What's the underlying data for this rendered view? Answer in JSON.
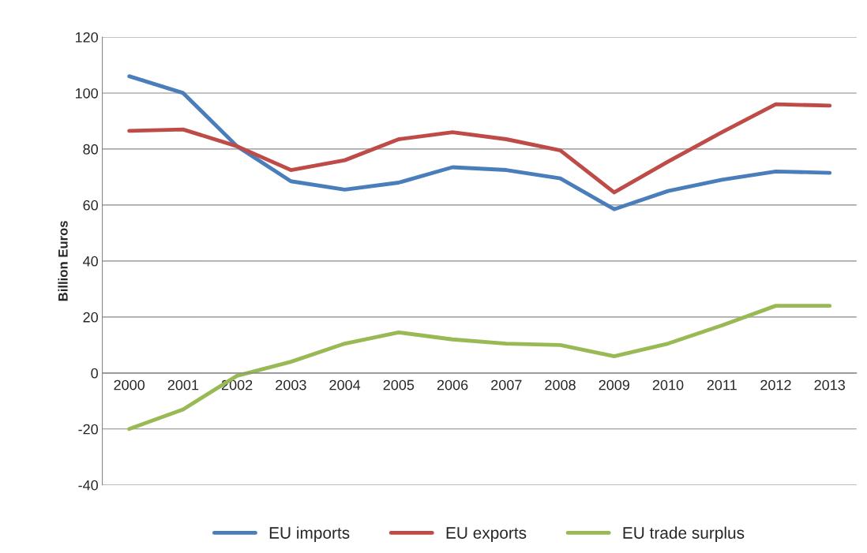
{
  "chart_data": {
    "type": "line",
    "ylabel": "Billion Euros",
    "categories": [
      "2000",
      "2001",
      "2002",
      "2003",
      "2004",
      "2005",
      "2006",
      "2007",
      "2008",
      "2009",
      "2010",
      "2011",
      "2012",
      "2013"
    ],
    "series": [
      {
        "name": "EU imports",
        "color": "#4a7ebb",
        "values": [
          106,
          100,
          81,
          68.5,
          65.5,
          68,
          73.5,
          72.5,
          69.5,
          58.5,
          65,
          69,
          72,
          71.5
        ]
      },
      {
        "name": "EU exports",
        "color": "#be4b48",
        "values": [
          86.5,
          87,
          81,
          72.5,
          76,
          83.5,
          86,
          83.5,
          79.5,
          64.5,
          75.5,
          86,
          96,
          95.5
        ]
      },
      {
        "name": "EU trade surplus",
        "color": "#98b954",
        "values": [
          -20,
          -13,
          -1,
          4,
          10.5,
          14.5,
          12,
          10.5,
          10,
          6,
          10.5,
          17,
          24,
          24
        ]
      }
    ],
    "ylim": [
      -40,
      120
    ],
    "yticks": [
      -40,
      -20,
      0,
      20,
      40,
      60,
      80,
      100,
      120
    ],
    "grid": "y",
    "legend": "bottom",
    "marker": "none",
    "line_style": "solid"
  }
}
